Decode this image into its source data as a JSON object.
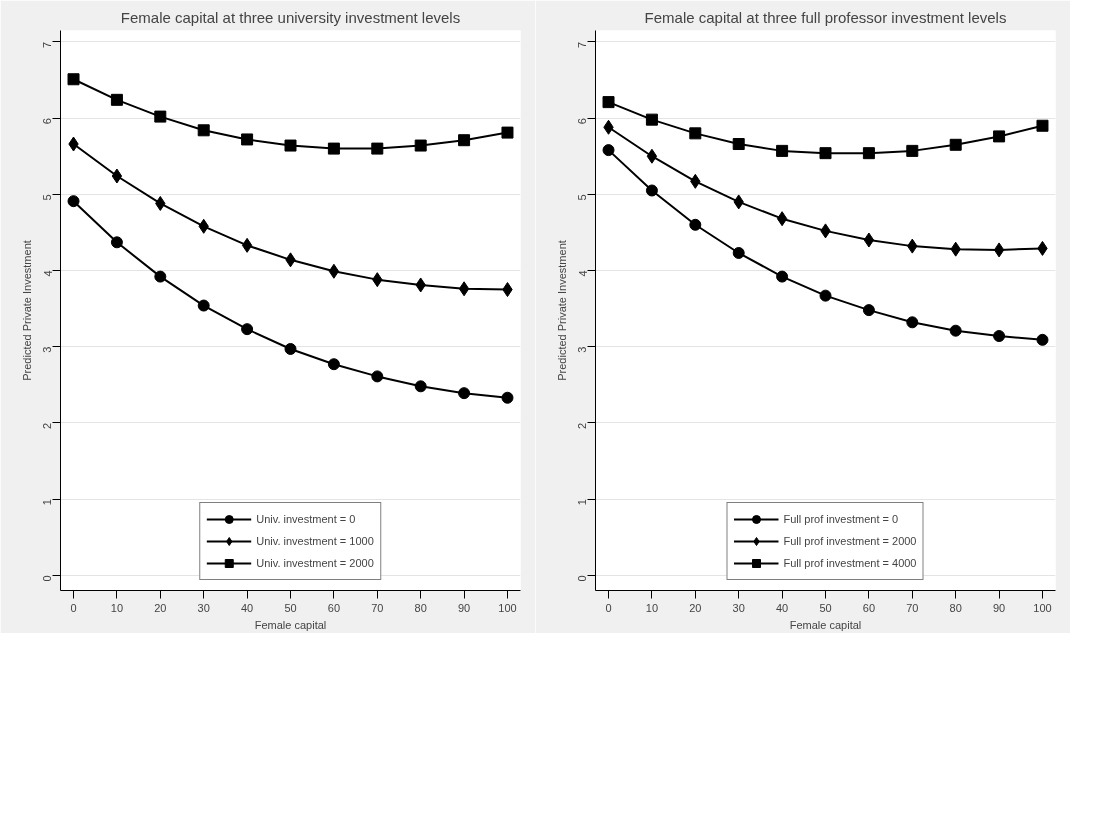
{
  "chart_data": [
    {
      "type": "line",
      "title": "Female capital at three university investment levels",
      "xlabel": "Female capital",
      "ylabel": "Predicted Private Investment",
      "x": [
        0,
        10,
        20,
        30,
        40,
        50,
        60,
        70,
        80,
        90,
        100
      ],
      "xlim": [
        -3,
        103
      ],
      "xticks": [
        0,
        10,
        20,
        30,
        40,
        50,
        60,
        70,
        80,
        90,
        100
      ],
      "ylim": [
        -0.2,
        7.15
      ],
      "yticks": [
        0,
        1,
        2,
        3,
        4,
        5,
        6,
        7
      ],
      "grid": "y",
      "legend": "bottom",
      "series": [
        {
          "name": "Univ. investment = 0",
          "color": "#000000",
          "marker": "circle",
          "values": [
            4.91,
            4.37,
            3.92,
            3.54,
            3.23,
            2.97,
            2.77,
            2.61,
            2.48,
            2.39,
            2.33
          ]
        },
        {
          "name": "Univ. investment = 1000",
          "color": "#000000",
          "marker": "diamond",
          "values": [
            5.66,
            5.24,
            4.88,
            4.58,
            4.33,
            4.14,
            3.99,
            3.88,
            3.81,
            3.76,
            3.75
          ]
        },
        {
          "name": "Univ. investment = 2000",
          "color": "#000000",
          "marker": "square",
          "values": [
            6.51,
            6.24,
            6.02,
            5.84,
            5.72,
            5.64,
            5.6,
            5.6,
            5.64,
            5.71,
            5.81
          ]
        }
      ]
    },
    {
      "type": "line",
      "title": "Female capital at three full professor investment levels",
      "xlabel": "Female capital",
      "ylabel": "Predicted Private Investment",
      "x": [
        0,
        10,
        20,
        30,
        40,
        50,
        60,
        70,
        80,
        90,
        100
      ],
      "xlim": [
        -3,
        103
      ],
      "xticks": [
        0,
        10,
        20,
        30,
        40,
        50,
        60,
        70,
        80,
        90,
        100
      ],
      "ylim": [
        -0.2,
        7.15
      ],
      "yticks": [
        0,
        1,
        2,
        3,
        4,
        5,
        6,
        7
      ],
      "grid": "y",
      "legend": "bottom",
      "series": [
        {
          "name": "Full prof investment = 0",
          "color": "#000000",
          "marker": "circle",
          "values": [
            5.58,
            5.05,
            4.6,
            4.23,
            3.92,
            3.67,
            3.48,
            3.32,
            3.21,
            3.14,
            3.09
          ]
        },
        {
          "name": "Full prof investment = 2000",
          "color": "#000000",
          "marker": "diamond",
          "values": [
            5.88,
            5.5,
            5.17,
            4.9,
            4.68,
            4.52,
            4.4,
            4.32,
            4.28,
            4.27,
            4.29
          ]
        },
        {
          "name": "Full prof investment = 4000",
          "color": "#000000",
          "marker": "square",
          "values": [
            6.21,
            5.98,
            5.8,
            5.66,
            5.57,
            5.54,
            5.54,
            5.57,
            5.65,
            5.76,
            5.9
          ]
        }
      ]
    }
  ]
}
